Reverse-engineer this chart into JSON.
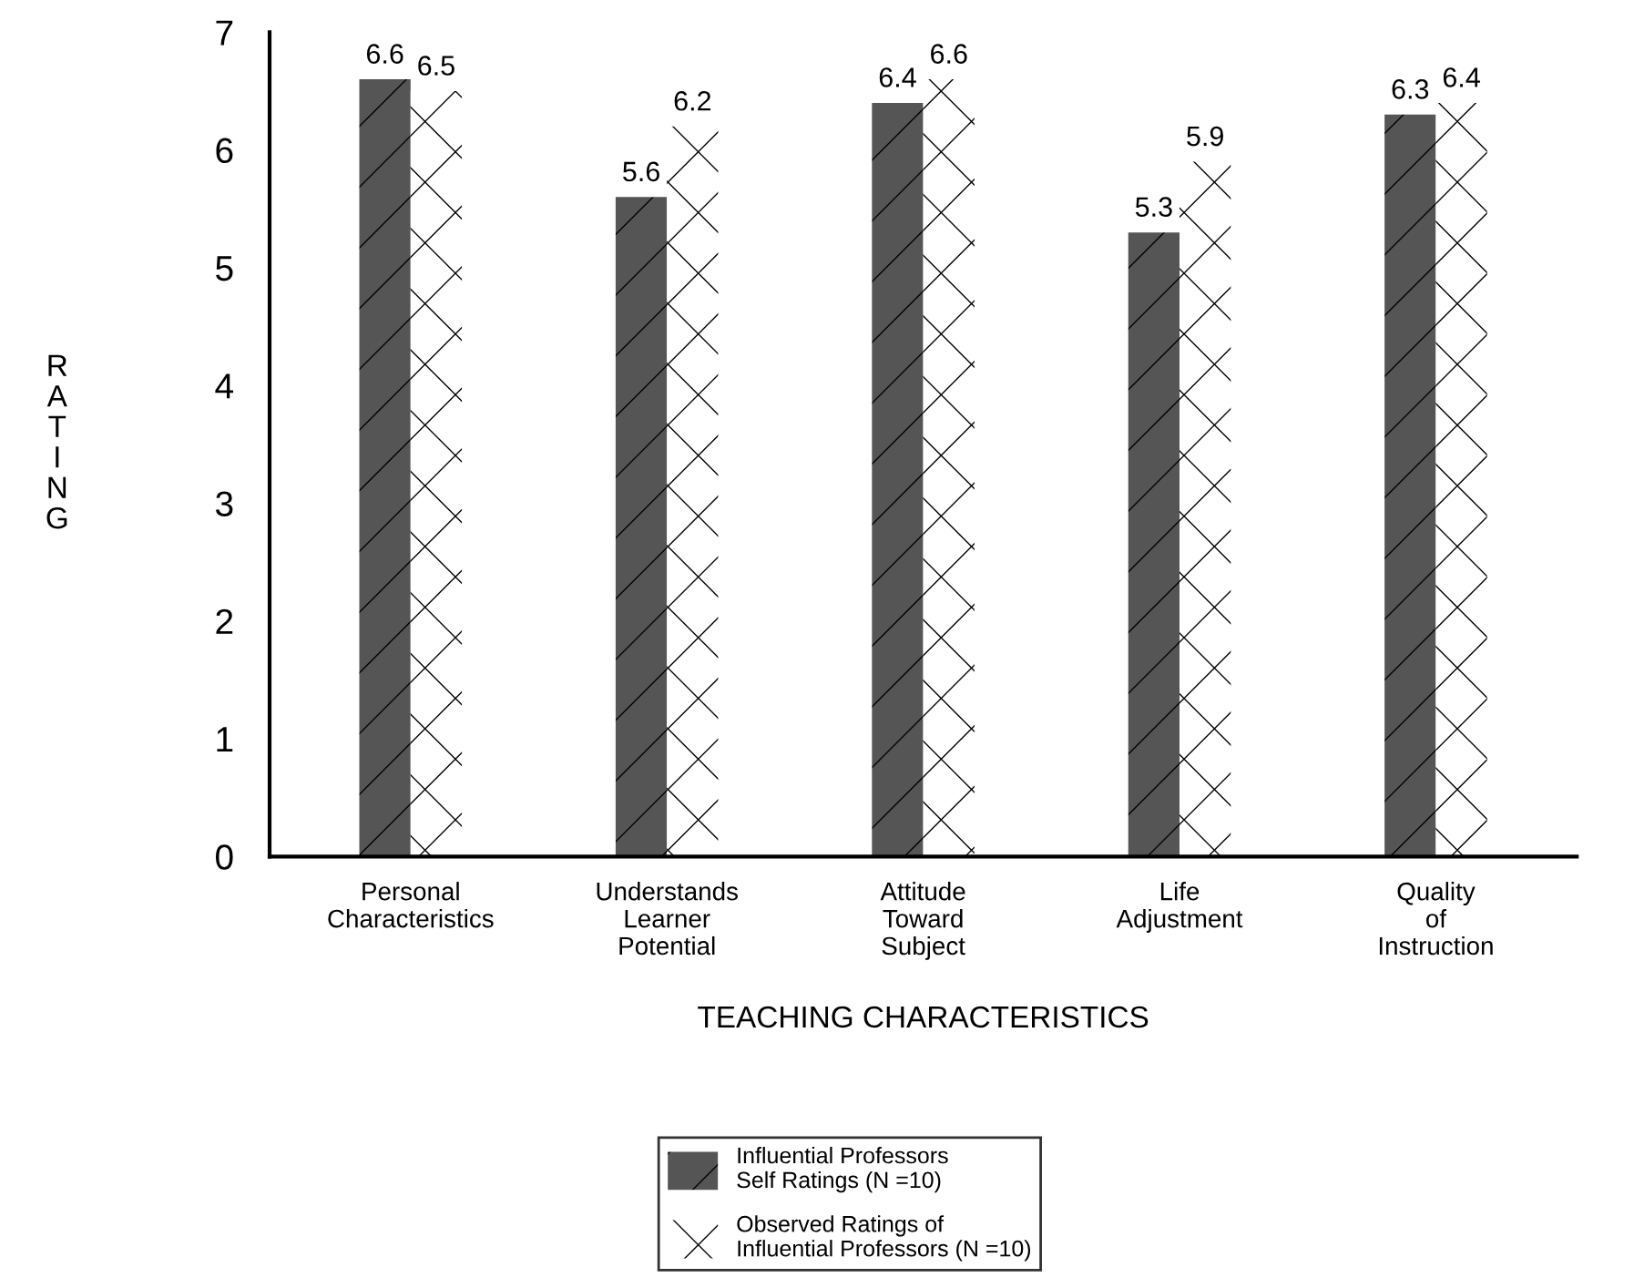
{
  "chart_data": {
    "type": "bar",
    "xlabel": "TEACHING CHARACTERISTICS",
    "ylabel": "RATING",
    "categories": [
      "Personal\nCharacteristics",
      "Understands\nLearner\nPotential",
      "Attitude\nToward\nSubject",
      "Life\nAdjustment",
      "Quality\nof\nInstruction"
    ],
    "series": [
      {
        "name": "Influential Professors\nSelf Ratings (N =10)",
        "color": "#555555",
        "values": [
          6.6,
          5.6,
          6.4,
          5.3,
          6.3
        ],
        "value_labels": [
          "6.6",
          "5.6",
          "6.4",
          "5.3",
          "6.3"
        ]
      },
      {
        "name": "Observed Ratings of\nInfluential Professors (N =10)",
        "color": "#ffffff",
        "values": [
          6.5,
          6.2,
          6.6,
          5.9,
          6.4
        ],
        "value_labels": [
          "6.5",
          "6.2",
          "6.6",
          "5.9",
          "6.4"
        ]
      }
    ],
    "ylim": [
      0,
      7
    ],
    "yticks": [
      0,
      1,
      2,
      3,
      4,
      5,
      6,
      7
    ],
    "grid": false,
    "legend": "bottom"
  }
}
